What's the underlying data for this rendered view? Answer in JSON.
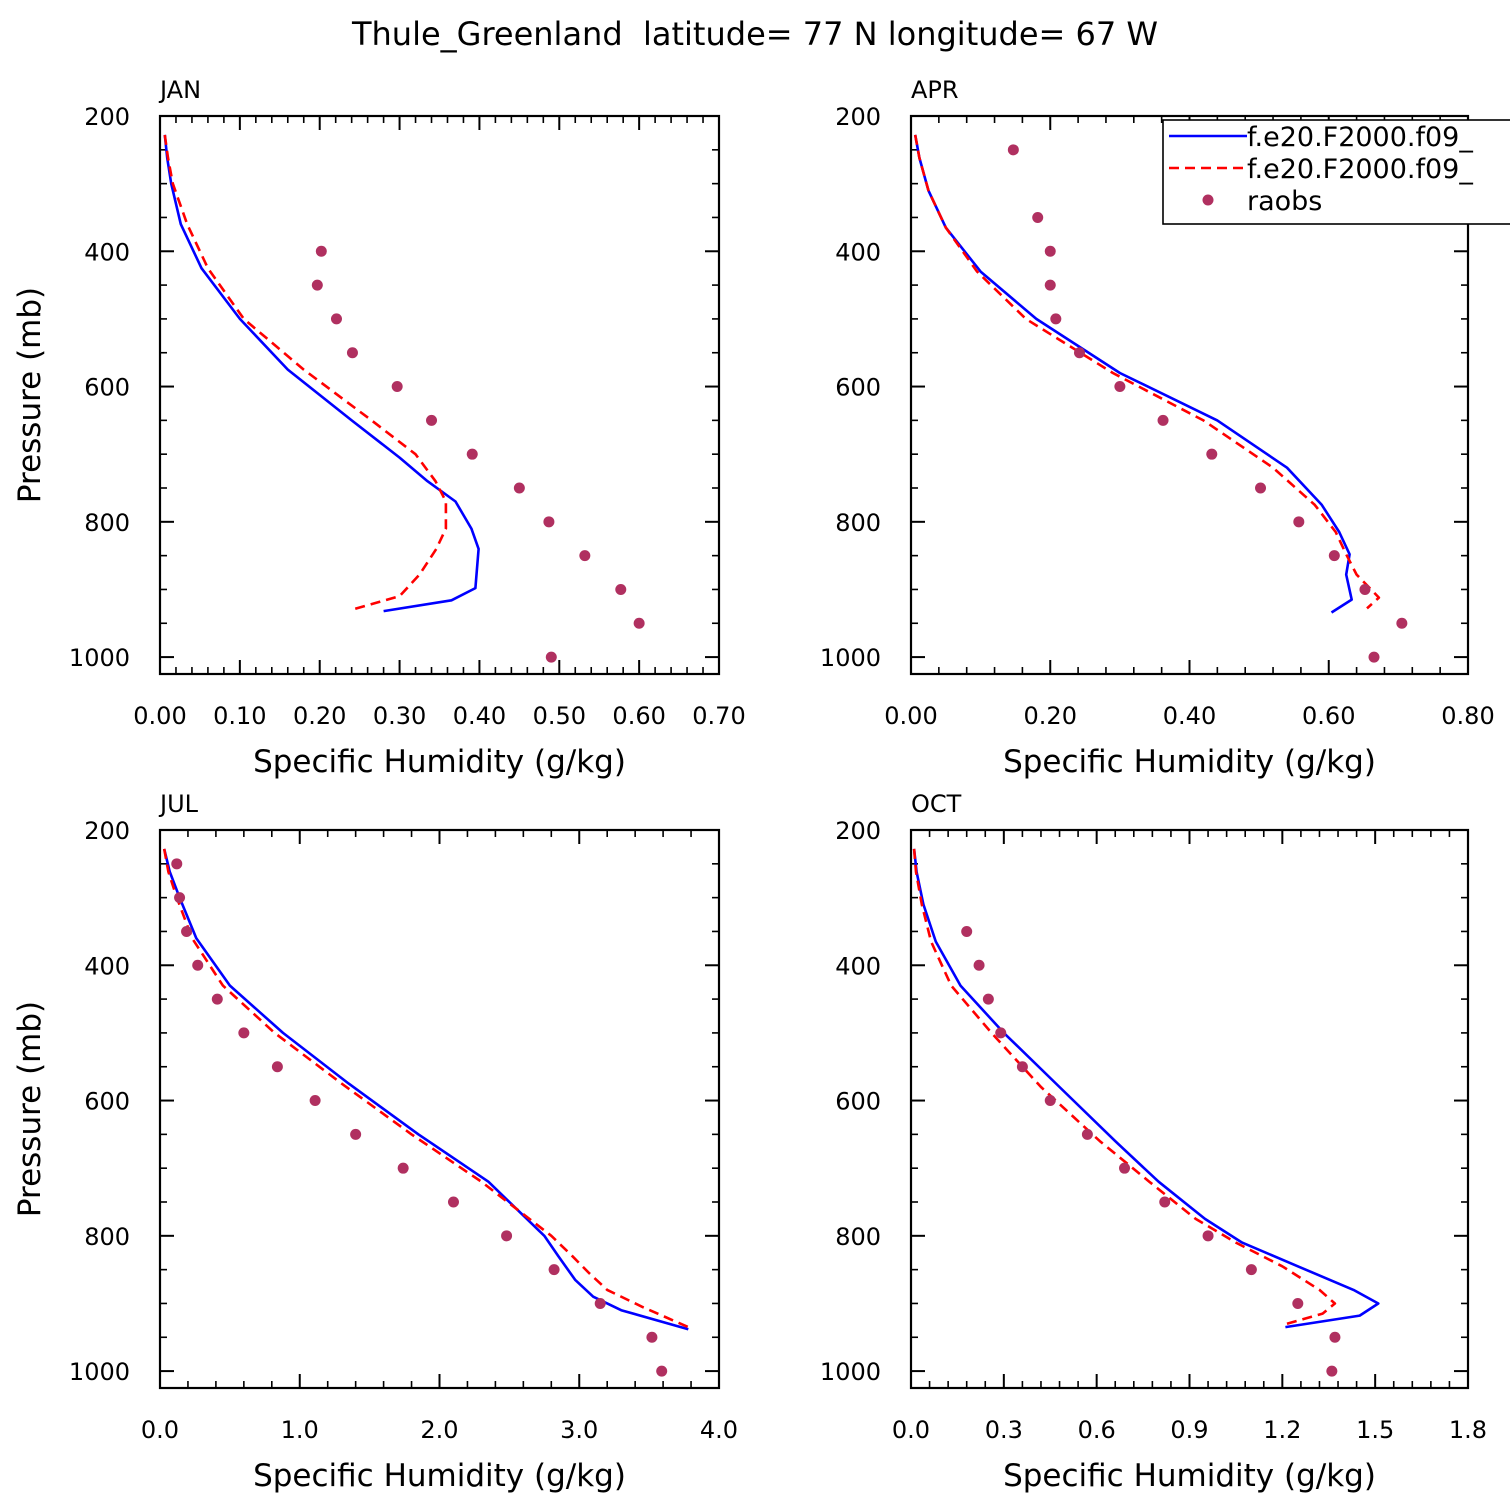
{
  "figure_title": "Thule_Greenland  latitude= 77 N longitude= 67 W",
  "colors": {
    "model1": "#0000ff",
    "model2": "#ff0000",
    "raobs": "#b03060",
    "axes": "#000000"
  },
  "legend": {
    "placement": "top-right of APR panel",
    "entries": [
      {
        "label": "f.e20.F2000.f09_",
        "style": "solid",
        "color": "#0000ff"
      },
      {
        "label": "f.e20.F2000.f09_",
        "style": "dashed",
        "color": "#ff0000"
      },
      {
        "label": "raobs",
        "style": "marker",
        "color": "#b03060"
      }
    ]
  },
  "chart_data": [
    {
      "panel": "JAN",
      "type": "line",
      "xlabel": "Specific Humidity (g/kg)",
      "ylabel": "Pressure (mb)",
      "xlim": [
        0,
        0.7
      ],
      "ylim": [
        200,
        1025
      ],
      "y_inverted": true,
      "xticks": [
        0,
        0.1,
        0.2,
        0.3,
        0.4,
        0.5,
        0.6,
        0.7
      ],
      "xtick_labels": [
        "0.00",
        "0.10",
        "0.20",
        "0.30",
        "0.40",
        "0.50",
        "0.60",
        "0.70"
      ],
      "yticks": [
        200,
        400,
        600,
        800,
        1000
      ],
      "ytick_labels": [
        "200",
        "400",
        "600",
        "800",
        "1000"
      ],
      "series": [
        {
          "style": "solid",
          "color": "#0000ff",
          "points": [
            [
              0.006,
              228
            ],
            [
              0.009,
              262
            ],
            [
              0.014,
              300
            ],
            [
              0.026,
              360
            ],
            [
              0.052,
              425
            ],
            [
              0.1,
              500
            ],
            [
              0.16,
              575
            ],
            [
              0.24,
              650
            ],
            [
              0.3,
              705
            ],
            [
              0.335,
              740
            ],
            [
              0.37,
              770
            ],
            [
              0.39,
              810
            ],
            [
              0.399,
              840
            ],
            [
              0.395,
              898
            ],
            [
              0.365,
              916
            ],
            [
              0.28,
              932
            ]
          ]
        },
        {
          "style": "dashed",
          "color": "#ff0000",
          "points": [
            [
              0.006,
              228
            ],
            [
              0.01,
              262
            ],
            [
              0.016,
              300
            ],
            [
              0.034,
              360
            ],
            [
              0.06,
              425
            ],
            [
              0.105,
              500
            ],
            [
              0.18,
              575
            ],
            [
              0.265,
              650
            ],
            [
              0.32,
              700
            ],
            [
              0.345,
              740
            ],
            [
              0.358,
              770
            ],
            [
              0.358,
              810
            ],
            [
              0.346,
              840
            ],
            [
              0.325,
              878
            ],
            [
              0.3,
              910
            ],
            [
              0.24,
              930
            ]
          ]
        },
        {
          "style": "marker",
          "color": "#b03060",
          "points": [
            [
              0.202,
              400
            ],
            [
              0.197,
              450
            ],
            [
              0.221,
              500
            ],
            [
              0.241,
              550
            ],
            [
              0.297,
              600
            ],
            [
              0.34,
              650
            ],
            [
              0.391,
              700
            ],
            [
              0.45,
              750
            ],
            [
              0.487,
              800
            ],
            [
              0.532,
              850
            ],
            [
              0.577,
              900
            ],
            [
              0.6,
              950
            ],
            [
              0.49,
              1000
            ]
          ]
        }
      ]
    },
    {
      "panel": "APR",
      "type": "line",
      "xlabel": "Specific Humidity (g/kg)",
      "ylabel": "",
      "xlim": [
        0,
        0.8
      ],
      "ylim": [
        200,
        1025
      ],
      "y_inverted": true,
      "xticks": [
        0,
        0.2,
        0.4,
        0.6,
        0.8
      ],
      "xtick_labels": [
        "0.00",
        "0.20",
        "0.40",
        "0.60",
        "0.80"
      ],
      "yticks": [
        200,
        400,
        600,
        800,
        1000
      ],
      "ytick_labels": [
        "200",
        "400",
        "600",
        "800",
        "1000"
      ],
      "series": [
        {
          "style": "solid",
          "color": "#0000ff",
          "points": [
            [
              0.006,
              228
            ],
            [
              0.012,
              262
            ],
            [
              0.025,
              310
            ],
            [
              0.05,
              365
            ],
            [
              0.1,
              430
            ],
            [
              0.18,
              500
            ],
            [
              0.3,
              580
            ],
            [
              0.44,
              650
            ],
            [
              0.54,
              720
            ],
            [
              0.59,
              775
            ],
            [
              0.615,
              815
            ],
            [
              0.63,
              848
            ],
            [
              0.625,
              878
            ],
            [
              0.633,
              915
            ],
            [
              0.604,
              934
            ]
          ]
        },
        {
          "style": "dashed",
          "color": "#ff0000",
          "points": [
            [
              0.006,
              228
            ],
            [
              0.012,
              262
            ],
            [
              0.025,
              310
            ],
            [
              0.05,
              365
            ],
            [
              0.095,
              430
            ],
            [
              0.165,
              500
            ],
            [
              0.29,
              580
            ],
            [
              0.42,
              650
            ],
            [
              0.52,
              720
            ],
            [
              0.58,
              775
            ],
            [
              0.61,
              815
            ],
            [
              0.625,
              848
            ],
            [
              0.64,
              878
            ],
            [
              0.672,
              912
            ],
            [
              0.655,
              928
            ]
          ]
        },
        {
          "style": "marker",
          "color": "#b03060",
          "points": [
            [
              0.147,
              250
            ],
            [
              0.182,
              350
            ],
            [
              0.2,
              400
            ],
            [
              0.2,
              450
            ],
            [
              0.208,
              500
            ],
            [
              0.242,
              550
            ],
            [
              0.3,
              600
            ],
            [
              0.362,
              650
            ],
            [
              0.432,
              700
            ],
            [
              0.502,
              750
            ],
            [
              0.557,
              800
            ],
            [
              0.608,
              850
            ],
            [
              0.652,
              900
            ],
            [
              0.705,
              950
            ],
            [
              0.665,
              1000
            ]
          ]
        }
      ]
    },
    {
      "panel": "JUL",
      "type": "line",
      "xlabel": "Specific Humidity (g/kg)",
      "ylabel": "Pressure (mb)",
      "xlim": [
        0,
        4.0
      ],
      "ylim": [
        200,
        1025
      ],
      "y_inverted": true,
      "xticks": [
        0,
        1,
        2,
        3,
        4
      ],
      "xtick_labels": [
        "0.0",
        "1.0",
        "2.0",
        "3.0",
        "4.0"
      ],
      "yticks": [
        200,
        400,
        600,
        800,
        1000
      ],
      "ytick_labels": [
        "200",
        "400",
        "600",
        "800",
        "1000"
      ],
      "series": [
        {
          "style": "solid",
          "color": "#0000ff",
          "points": [
            [
              0.03,
              228
            ],
            [
              0.07,
              262
            ],
            [
              0.14,
              300
            ],
            [
              0.26,
              360
            ],
            [
              0.5,
              430
            ],
            [
              0.88,
              500
            ],
            [
              1.35,
              575
            ],
            [
              1.85,
              650
            ],
            [
              2.35,
              720
            ],
            [
              2.55,
              760
            ],
            [
              2.75,
              800
            ],
            [
              2.85,
              830
            ],
            [
              2.97,
              865
            ],
            [
              3.1,
              890
            ],
            [
              3.3,
              910
            ],
            [
              3.78,
              938
            ]
          ]
        },
        {
          "style": "dashed",
          "color": "#ff0000",
          "points": [
            [
              0.03,
              228
            ],
            [
              0.06,
              262
            ],
            [
              0.12,
              300
            ],
            [
              0.23,
              360
            ],
            [
              0.45,
              430
            ],
            [
              0.82,
              500
            ],
            [
              1.3,
              575
            ],
            [
              1.8,
              650
            ],
            [
              2.3,
              720
            ],
            [
              2.55,
              760
            ],
            [
              2.8,
              800
            ],
            [
              2.95,
              830
            ],
            [
              3.07,
              855
            ],
            [
              3.2,
              880
            ],
            [
              3.45,
              905
            ],
            [
              3.78,
              935
            ]
          ]
        },
        {
          "style": "marker",
          "color": "#b03060",
          "points": [
            [
              0.12,
              250
            ],
            [
              0.14,
              300
            ],
            [
              0.19,
              350
            ],
            [
              0.27,
              400
            ],
            [
              0.41,
              450
            ],
            [
              0.6,
              500
            ],
            [
              0.84,
              550
            ],
            [
              1.11,
              600
            ],
            [
              1.4,
              650
            ],
            [
              1.74,
              700
            ],
            [
              2.1,
              750
            ],
            [
              2.48,
              800
            ],
            [
              2.82,
              850
            ],
            [
              3.15,
              900
            ],
            [
              3.52,
              950
            ],
            [
              3.59,
              1000
            ]
          ]
        }
      ]
    },
    {
      "panel": "OCT",
      "type": "line",
      "xlabel": "Specific Humidity (g/kg)",
      "ylabel": "",
      "xlim": [
        0,
        1.8
      ],
      "ylim": [
        200,
        1025
      ],
      "y_inverted": true,
      "xticks": [
        0,
        0.3,
        0.6,
        0.9,
        1.2,
        1.5,
        1.8
      ],
      "xtick_labels": [
        "0.0",
        "0.3",
        "0.6",
        "0.9",
        "1.2",
        "1.5",
        "1.8"
      ],
      "yticks": [
        200,
        400,
        600,
        800,
        1000
      ],
      "ytick_labels": [
        "200",
        "400",
        "600",
        "800",
        "1000"
      ],
      "series": [
        {
          "style": "solid",
          "color": "#0000ff",
          "points": [
            [
              0.01,
              228
            ],
            [
              0.018,
              262
            ],
            [
              0.04,
              310
            ],
            [
              0.08,
              365
            ],
            [
              0.16,
              430
            ],
            [
              0.3,
              500
            ],
            [
              0.48,
              580
            ],
            [
              0.66,
              660
            ],
            [
              0.8,
              720
            ],
            [
              0.95,
              775
            ],
            [
              1.07,
              810
            ],
            [
              1.25,
              845
            ],
            [
              1.43,
              880
            ],
            [
              1.51,
              900
            ],
            [
              1.45,
              918
            ],
            [
              1.21,
              935
            ]
          ]
        },
        {
          "style": "dashed",
          "color": "#ff0000",
          "points": [
            [
              0.01,
              228
            ],
            [
              0.016,
              262
            ],
            [
              0.035,
              310
            ],
            [
              0.065,
              365
            ],
            [
              0.13,
              430
            ],
            [
              0.26,
              500
            ],
            [
              0.42,
              580
            ],
            [
              0.61,
              660
            ],
            [
              0.77,
              720
            ],
            [
              0.92,
              775
            ],
            [
              1.05,
              810
            ],
            [
              1.2,
              845
            ],
            [
              1.32,
              880
            ],
            [
              1.37,
              900
            ],
            [
              1.33,
              915
            ],
            [
              1.2,
              932
            ]
          ]
        },
        {
          "style": "marker",
          "color": "#b03060",
          "points": [
            [
              0.18,
              350
            ],
            [
              0.22,
              400
            ],
            [
              0.25,
              450
            ],
            [
              0.29,
              500
            ],
            [
              0.36,
              550
            ],
            [
              0.45,
              600
            ],
            [
              0.57,
              650
            ],
            [
              0.69,
              700
            ],
            [
              0.82,
              750
            ],
            [
              0.96,
              800
            ],
            [
              1.1,
              850
            ],
            [
              1.25,
              900
            ],
            [
              1.37,
              950
            ],
            [
              1.36,
              1000
            ]
          ]
        }
      ]
    }
  ]
}
